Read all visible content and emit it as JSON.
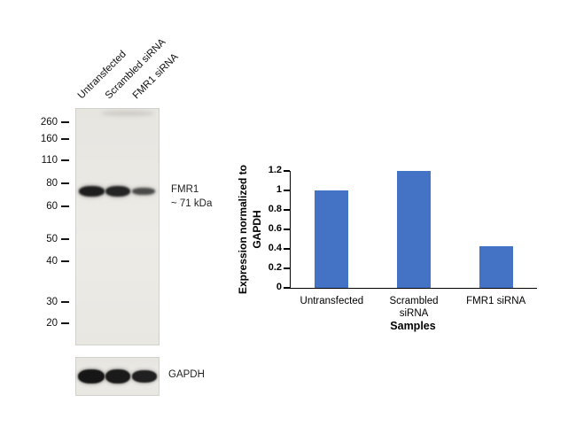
{
  "blot": {
    "lane_labels": [
      "Untransfected",
      "Scrambled siRNA",
      "FMR1 siRNA"
    ],
    "markers": [
      "260",
      "160",
      "110",
      "80",
      "60",
      "50",
      "40",
      "30",
      "20"
    ],
    "target_label": "FMR1",
    "target_size": "~ 71 kDa",
    "loading_control_label": "GAPDH"
  },
  "chart_data": {
    "type": "bar",
    "categories": [
      "Untransfected",
      "Scrambled siRNA",
      "FMR1 siRNA"
    ],
    "values": [
      1.0,
      1.2,
      0.43
    ],
    "title": "",
    "xlabel": "Samples",
    "ylabel": "Expression normalized to GAPDH",
    "ylim": [
      0,
      1.2
    ],
    "yticks": [
      0,
      0.2,
      0.4,
      0.6,
      0.8,
      1,
      1.2
    ],
    "bar_color": "#4472C4",
    "grid": false,
    "legend": "none"
  }
}
